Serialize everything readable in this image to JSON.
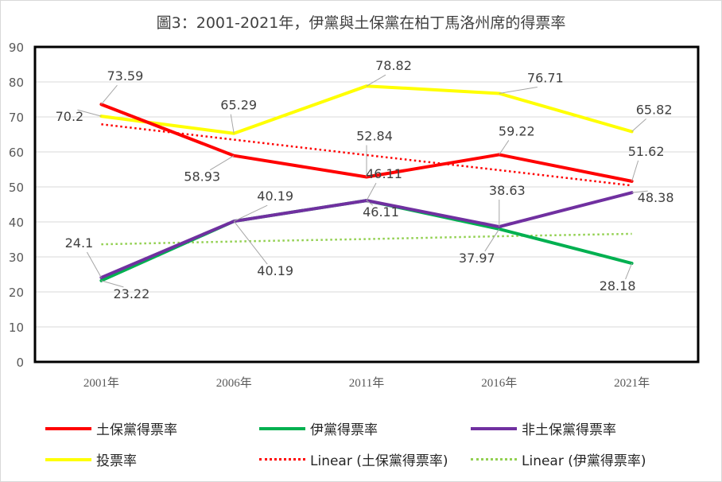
{
  "chart_data": {
    "type": "line",
    "title": "圖3：2001-2021年，伊黨與土保黨在柏丁馬洛州席的得票率",
    "categories": [
      "2001年",
      "2006年",
      "2011年",
      "2016年",
      "2021年"
    ],
    "ylim": [
      0,
      90
    ],
    "yticks": [
      "0",
      "10",
      "20",
      "30",
      "40",
      "50",
      "60",
      "70",
      "80",
      "90"
    ],
    "grid": true,
    "legend_position": "bottom",
    "series": [
      {
        "name": "土保黨得票率",
        "color": "#ff0000",
        "style": "solid",
        "values": [
          73.59,
          58.93,
          52.84,
          59.22,
          51.62
        ],
        "labels": [
          "73.59",
          "58.93",
          "52.84",
          "59.22",
          "51.62"
        ]
      },
      {
        "name": "伊黨得票率",
        "color": "#00b050",
        "style": "solid",
        "values": [
          23.22,
          40.19,
          46.11,
          37.97,
          28.18
        ],
        "labels": [
          "23.22",
          "40.19",
          "46.11",
          "37.97",
          "28.18"
        ]
      },
      {
        "name": "非土保黨得票率",
        "color": "#7030a0",
        "style": "solid",
        "values": [
          24.1,
          40.19,
          46.11,
          38.63,
          48.38
        ],
        "labels": [
          "24.1",
          "40.19",
          "46.11",
          "38.63",
          "48.38"
        ]
      },
      {
        "name": "投票率",
        "color": "#ffff00",
        "style": "solid",
        "values": [
          70.2,
          65.29,
          78.82,
          76.71,
          65.82
        ],
        "labels": [
          "70.2",
          "65.29",
          "78.82",
          "76.71",
          "65.82"
        ]
      },
      {
        "name": "Linear (土保黨得票率)",
        "color": "#ff0000",
        "style": "dotted",
        "trend_of": 0,
        "values": [
          67.9,
          63.5,
          59.1,
          54.8,
          50.4
        ]
      },
      {
        "name": "Linear (伊黨得票率)",
        "color": "#92d050",
        "style": "dotted",
        "trend_of": 1,
        "values": [
          33.6,
          34.4,
          35.1,
          35.9,
          36.6
        ]
      }
    ]
  }
}
